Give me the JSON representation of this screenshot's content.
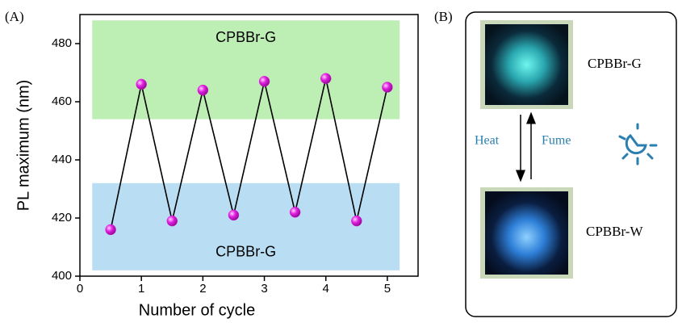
{
  "chart_data": {
    "type": "line",
    "panel_label": "(A)",
    "x_label": "Number of cycle",
    "y_label": "PL maximum (nm)",
    "x": [
      0.5,
      1,
      1.5,
      2,
      2.5,
      3,
      3.5,
      4,
      4.5,
      5
    ],
    "series": [
      {
        "color": "#e020e0",
        "values": [
          416,
          466,
          419,
          464,
          421,
          467,
          422,
          468,
          419,
          465
        ]
      }
    ],
    "xlim": [
      0,
      5.5
    ],
    "xticks": [
      0,
      1,
      2,
      3,
      4,
      5
    ],
    "ylim": [
      400,
      490
    ],
    "yticks": [
      400,
      420,
      440,
      460,
      480
    ],
    "bands": [
      {
        "label": "CPBBr-G",
        "color": "#bdeeb4",
        "xlim": [
          0.2,
          5.2
        ],
        "ylim": [
          454,
          488
        ]
      },
      {
        "label": "CPBBr-G",
        "color": "#b9def4",
        "xlim": [
          0.2,
          5.2
        ],
        "ylim": [
          402,
          432
        ]
      }
    ]
  },
  "diagram": {
    "panel_label": "(B)",
    "top_label": "CPBBr-G",
    "bottom_label": "CPBBr-W",
    "left_arrow_label": "Heat",
    "right_arrow_label": "Fume"
  }
}
